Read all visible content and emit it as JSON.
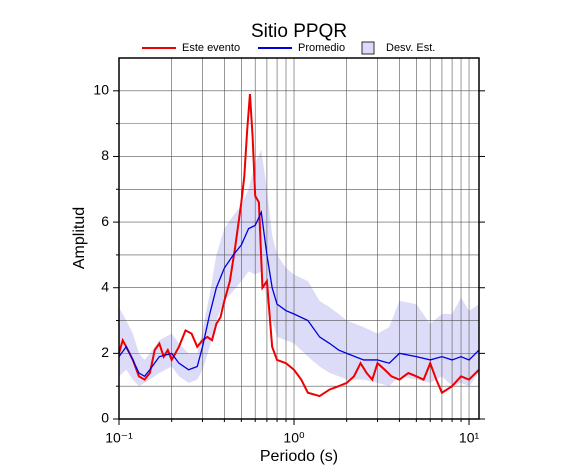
{
  "chart_data": {
    "type": "line",
    "title": "Sitio PPQR",
    "xlabel": "Periodo (s)",
    "ylabel": "Amplitud",
    "xscale": "log",
    "xlim": [
      0.1,
      11.4
    ],
    "ylim": [
      0,
      11
    ],
    "grid": true,
    "xticks": [
      {
        "value": 0.1,
        "label": "10⁻¹"
      },
      {
        "value": 1,
        "label": "10⁰"
      },
      {
        "value": 10,
        "label": "10¹"
      }
    ],
    "x_minor_ticks": [
      0.2,
      0.3,
      0.4,
      0.5,
      0.6,
      0.7,
      0.8,
      0.9,
      2,
      3,
      4,
      5,
      6,
      7,
      8,
      9
    ],
    "yticks": [
      0,
      2,
      4,
      6,
      8,
      10
    ],
    "y_minor_ticks": [
      1,
      3,
      5,
      7,
      9
    ],
    "series": [
      {
        "name": "Este evento",
        "color": "#ee0000",
        "x": [
          0.1,
          0.105,
          0.11,
          0.12,
          0.13,
          0.14,
          0.15,
          0.16,
          0.17,
          0.18,
          0.19,
          0.2,
          0.22,
          0.24,
          0.26,
          0.28,
          0.3,
          0.32,
          0.34,
          0.36,
          0.38,
          0.4,
          0.43,
          0.46,
          0.5,
          0.52,
          0.54,
          0.56,
          0.58,
          0.6,
          0.63,
          0.66,
          0.7,
          0.75,
          0.8,
          0.9,
          1.0,
          1.1,
          1.2,
          1.4,
          1.6,
          1.8,
          2.0,
          2.2,
          2.4,
          2.6,
          2.8,
          3.0,
          3.3,
          3.6,
          4.0,
          4.5,
          5.0,
          5.5,
          6.0,
          6.5,
          7.0,
          8.0,
          9.0,
          10,
          11.4
        ],
        "values": [
          2.0,
          2.4,
          2.2,
          1.8,
          1.3,
          1.2,
          1.4,
          2.1,
          2.3,
          1.9,
          2.1,
          1.8,
          2.2,
          2.7,
          2.6,
          2.2,
          2.4,
          2.5,
          2.4,
          2.9,
          3.1,
          3.6,
          4.2,
          5.2,
          6.6,
          7.4,
          8.8,
          9.9,
          8.6,
          6.8,
          6.6,
          4.0,
          4.2,
          2.2,
          1.8,
          1.7,
          1.5,
          1.2,
          0.8,
          0.7,
          0.9,
          1.0,
          1.1,
          1.3,
          1.7,
          1.4,
          1.2,
          1.7,
          1.5,
          1.3,
          1.2,
          1.4,
          1.3,
          1.2,
          1.7,
          1.2,
          0.8,
          1.0,
          1.3,
          1.2,
          1.5
        ]
      },
      {
        "name": "Promedio",
        "color": "#0000dd",
        "x": [
          0.1,
          0.11,
          0.12,
          0.13,
          0.14,
          0.15,
          0.17,
          0.2,
          0.22,
          0.25,
          0.28,
          0.3,
          0.33,
          0.36,
          0.4,
          0.45,
          0.5,
          0.55,
          0.6,
          0.65,
          0.7,
          0.75,
          0.8,
          0.9,
          1.0,
          1.2,
          1.4,
          1.6,
          1.8,
          2.0,
          2.5,
          3.0,
          3.5,
          4.0,
          5.0,
          6.0,
          7.0,
          8.0,
          9.0,
          10,
          11.4
        ],
        "values": [
          1.9,
          2.2,
          1.8,
          1.4,
          1.3,
          1.5,
          1.9,
          2.0,
          1.7,
          1.5,
          1.6,
          2.2,
          3.2,
          4.0,
          4.6,
          5.0,
          5.3,
          5.8,
          5.9,
          6.3,
          5.0,
          4.0,
          3.5,
          3.3,
          3.2,
          3.0,
          2.5,
          2.3,
          2.1,
          2.0,
          1.8,
          1.8,
          1.7,
          2.0,
          1.9,
          1.8,
          1.9,
          1.8,
          1.9,
          1.8,
          2.1
        ]
      },
      {
        "name": "Desv. Est.",
        "color": "#dcdcf8",
        "type": "band",
        "x": [
          0.1,
          0.11,
          0.12,
          0.13,
          0.14,
          0.15,
          0.17,
          0.2,
          0.22,
          0.25,
          0.28,
          0.3,
          0.33,
          0.36,
          0.4,
          0.45,
          0.5,
          0.55,
          0.6,
          0.65,
          0.7,
          0.75,
          0.8,
          0.9,
          1.0,
          1.2,
          1.4,
          1.6,
          1.8,
          2.0,
          2.5,
          3.0,
          3.5,
          4.0,
          5.0,
          6.0,
          7.0,
          8.0,
          9.0,
          10,
          11.4
        ],
        "lower": [
          1.3,
          1.5,
          1.2,
          1.0,
          1.1,
          1.2,
          1.4,
          1.6,
          1.3,
          1.1,
          1.2,
          1.5,
          2.2,
          3.0,
          3.6,
          3.9,
          4.2,
          4.5,
          4.4,
          4.5,
          3.6,
          3.0,
          2.5,
          2.4,
          2.3,
          1.9,
          1.6,
          1.4,
          1.3,
          1.2,
          1.2,
          1.1,
          1.0,
          1.3,
          1.2,
          1.1,
          1.3,
          1.0,
          1.1,
          1.0,
          1.4
        ],
        "upper": [
          3.4,
          3.0,
          2.6,
          2.0,
          1.8,
          2.0,
          2.4,
          2.6,
          2.3,
          2.0,
          2.0,
          2.7,
          3.8,
          5.0,
          5.8,
          6.2,
          6.5,
          7.0,
          7.8,
          8.2,
          7.0,
          5.6,
          5.0,
          4.6,
          4.4,
          4.2,
          3.6,
          3.4,
          3.2,
          3.0,
          2.8,
          2.6,
          2.8,
          3.6,
          3.5,
          2.9,
          3.2,
          3.2,
          3.7,
          3.3,
          3.5
        ]
      }
    ]
  }
}
